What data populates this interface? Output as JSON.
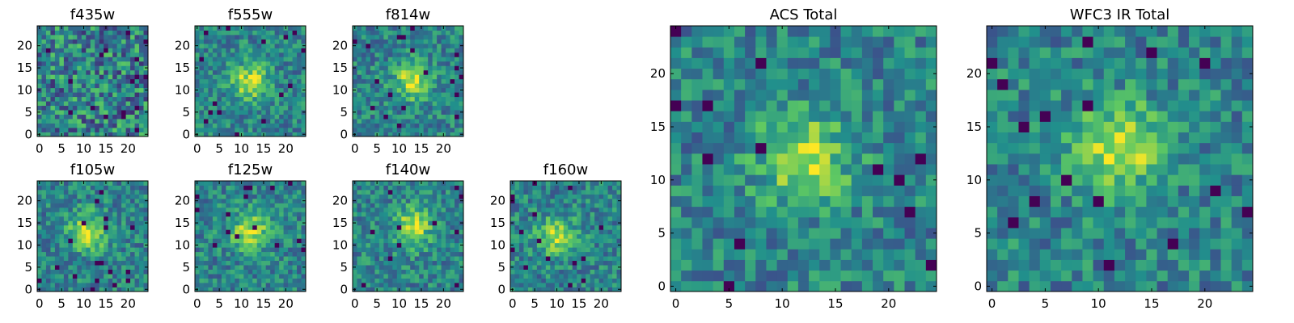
{
  "figure": {
    "colormap": "viridis",
    "colormap_stops": [
      "#440154",
      "#3b528b",
      "#21908c",
      "#5dc863",
      "#fde725"
    ]
  },
  "chart_data": [
    {
      "type": "heatmap",
      "title": "f435w",
      "grid_size": 25,
      "xlim": [
        -0.5,
        24.5
      ],
      "ylim": [
        -0.5,
        24.5
      ],
      "xticks": [
        "0",
        "5",
        "10",
        "15",
        "20"
      ],
      "yticks": [
        "0",
        "5",
        "10",
        "15",
        "20"
      ],
      "grid": false,
      "peak": "none (noise)"
    },
    {
      "type": "heatmap",
      "title": "f555w",
      "grid_size": 25,
      "xlim": [
        -0.5,
        24.5
      ],
      "ylim": [
        -0.5,
        24.5
      ],
      "xticks": [
        "0",
        "5",
        "10",
        "15",
        "20"
      ],
      "yticks": [
        "0",
        "5",
        "10",
        "15",
        "20"
      ],
      "grid": false,
      "peak": [
        12,
        12
      ]
    },
    {
      "type": "heatmap",
      "title": "f814w",
      "grid_size": 25,
      "xlim": [
        -0.5,
        24.5
      ],
      "ylim": [
        -0.5,
        24.5
      ],
      "xticks": [
        "0",
        "5",
        "10",
        "15",
        "20"
      ],
      "yticks": [
        "0",
        "5",
        "10",
        "15",
        "20"
      ],
      "grid": false,
      "peak": [
        13,
        12
      ]
    },
    {
      "type": "heatmap",
      "title": "f105w",
      "grid_size": 25,
      "xlim": [
        -0.5,
        24.5
      ],
      "ylim": [
        -0.5,
        24.5
      ],
      "xticks": [
        "0",
        "5",
        "10",
        "15",
        "20"
      ],
      "yticks": [
        "0",
        "5",
        "10",
        "15",
        "20"
      ],
      "grid": false,
      "peak": [
        11,
        13
      ]
    },
    {
      "type": "heatmap",
      "title": "f125w",
      "grid_size": 25,
      "xlim": [
        -0.5,
        24.5
      ],
      "ylim": [
        -0.5,
        24.5
      ],
      "xticks": [
        "0",
        "5",
        "10",
        "15",
        "20"
      ],
      "yticks": [
        "0",
        "5",
        "10",
        "15",
        "20"
      ],
      "grid": false,
      "peak": [
        12,
        13
      ]
    },
    {
      "type": "heatmap",
      "title": "f140w",
      "grid_size": 25,
      "xlim": [
        -0.5,
        24.5
      ],
      "ylim": [
        -0.5,
        24.5
      ],
      "xticks": [
        "0",
        "5",
        "10",
        "15",
        "20"
      ],
      "yticks": [
        "0",
        "5",
        "10",
        "15",
        "20"
      ],
      "grid": false,
      "peak": [
        13,
        14
      ]
    },
    {
      "type": "heatmap",
      "title": "f160w",
      "grid_size": 25,
      "xlim": [
        -0.5,
        24.5
      ],
      "ylim": [
        -0.5,
        24.5
      ],
      "xticks": [
        "0",
        "5",
        "10",
        "15",
        "20"
      ],
      "yticks": [
        "0",
        "5",
        "10",
        "15",
        "20"
      ],
      "grid": false,
      "peak": [
        10,
        12
      ]
    },
    {
      "type": "heatmap",
      "title": "ACS Total",
      "grid_size": 25,
      "xlim": [
        -0.5,
        24.5
      ],
      "ylim": [
        -0.5,
        24.5
      ],
      "xticks": [
        "0",
        "5",
        "10",
        "15",
        "20"
      ],
      "yticks": [
        "0",
        "5",
        "10",
        "15",
        "20"
      ],
      "grid": false,
      "peak": [
        12,
        12
      ]
    },
    {
      "type": "heatmap",
      "title": "WFC3 IR Total",
      "grid_size": 25,
      "xlim": [
        -0.5,
        24.5
      ],
      "ylim": [
        -0.5,
        24.5
      ],
      "xticks": [
        "0",
        "5",
        "10",
        "15",
        "20"
      ],
      "yticks": [
        "0",
        "5",
        "10",
        "15",
        "20"
      ],
      "grid": false,
      "peak": [
        12,
        13
      ]
    }
  ]
}
